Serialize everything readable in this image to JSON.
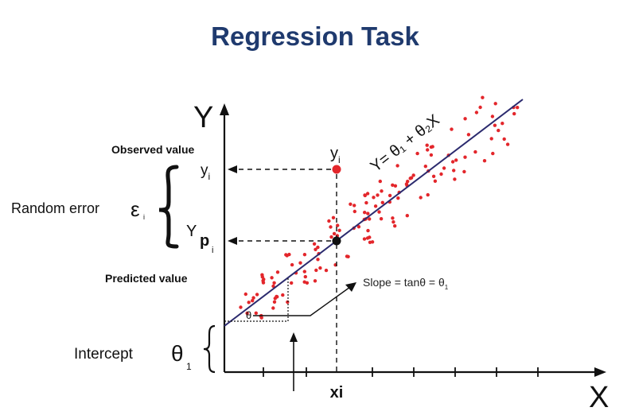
{
  "title": "Regression Task",
  "axes": {
    "y_label": "Y",
    "x_label": "X",
    "x_tick_label": "xi"
  },
  "labels": {
    "observed_value": "Observed value",
    "predicted_value": "Predicted value",
    "observed_y": "y",
    "observed_y_sub": "i",
    "axis_observed_y": "y",
    "axis_observed_y_sub": "i",
    "predicted_y": "Y",
    "predicted_y_p": "p",
    "predicted_y_sub": "i",
    "random_error": "Random error",
    "epsilon": "ε",
    "epsilon_sub": "i",
    "intercept": "Intercept",
    "theta": "θ",
    "theta_sub": "1",
    "angle_theta": "θ",
    "slope": "Slope = tanθ = θ",
    "slope_sub": "1",
    "equation": "Y= θ₁ + θ₂X"
  },
  "colors": {
    "title": "#1f3a6e",
    "line": "#2b2a6e",
    "points": "#e3262b",
    "text": "#111111"
  }
}
